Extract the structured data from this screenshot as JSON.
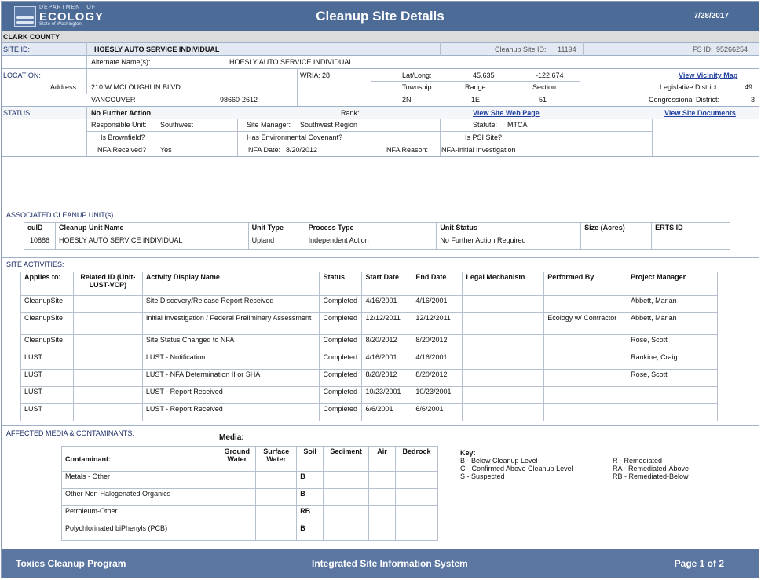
{
  "header": {
    "logo_small": "DEPARTMENT OF",
    "logo_main": "ECOLOGY",
    "logo_sub": "State of Washington",
    "title": "Cleanup Site Details",
    "date": "7/28/2017"
  },
  "county": "CLARK COUNTY",
  "site": {
    "label": "SITE ID:",
    "name": "HOESLY AUTO SERVICE INDIVIDUAL",
    "cleanup_site_id_label": "Cleanup Site ID:",
    "cleanup_site_id": "11194",
    "fs_id_label": "FS ID:",
    "fs_id": "95266254",
    "alt_names_label": "Alternate Name(s):",
    "alt_names": "HOESLY AUTO SERVICE INDIVIDUAL"
  },
  "location": {
    "label": "LOCATION:",
    "wria_label": "WRIA:",
    "wria": "28",
    "latlong_label": "Lat/Long:",
    "lat": "45.635",
    "long": "-122.674",
    "vicinity_link": "View Vicinity Map",
    "address_label": "Address:",
    "street": "210 W MCLOUGHLIN BLVD",
    "city": "VANCOUVER",
    "zip": "98660-2612",
    "township_label": "Township",
    "township": "2N",
    "range_label": "Range",
    "range": "1E",
    "section_label": "Section",
    "section": "51",
    "legislative_label": "Legislative District:",
    "legislative": "49",
    "congressional_label": "Congressional District:",
    "congressional": "3"
  },
  "status": {
    "label": "STATUS:",
    "value": "No Further Action",
    "rank_label": "Rank:",
    "web_link": "View Site Web Page",
    "docs_link": "View Site Documents",
    "unit_label": "Responsible Unit:",
    "unit": "Southwest",
    "manager_label": "Site Manager:",
    "manager": "Southwest Region",
    "statute_label": "Statute:",
    "statute": "MTCA",
    "brownfield_label": "Is Brownfield?",
    "covenant_label": "Has Environmental Covenant?",
    "psi_label": "Is PSI Site?",
    "nfa_received_label": "NFA Received?",
    "nfa_received": "Yes",
    "nfa_date_label": "NFA Date:",
    "nfa_date": "8/20/2012",
    "nfa_reason_label": "NFA Reason:",
    "nfa_reason": "NFA-Initial Investigation"
  },
  "units": {
    "section_label": "ASSOCIATED CLEANUP UNIT(s)",
    "headers": [
      "cuID",
      "Cleanup Unit Name",
      "Unit Type",
      "Process Type",
      "Unit Status",
      "Size (Acres)",
      "ERTS ID"
    ],
    "rows": [
      [
        "10886",
        "HOESLY AUTO SERVICE INDIVIDUAL",
        "Upland",
        "Independent Action",
        "No Further Action Required",
        "",
        ""
      ]
    ]
  },
  "activities": {
    "section_label": "SITE ACTIVITIES:",
    "headers": [
      "Applies to:",
      "Related ID (Unit-LUST-VCP)",
      "Activity Display Name",
      "Status",
      "Start Date",
      "End Date",
      "Legal Mechanism",
      "Performed By",
      "Project Manager"
    ],
    "rows": [
      [
        "CleanupSite",
        "",
        "Site Discovery/Release Report Received",
        "Completed",
        "4/16/2001",
        "4/16/2001",
        "",
        "",
        "Abbett, Marian"
      ],
      [
        "CleanupSite",
        "",
        "Initial Investigation / Federal Preliminary Assessment",
        "Completed",
        "12/12/2011",
        "12/12/2011",
        "",
        "Ecology w/ Contractor",
        "Abbett, Marian"
      ],
      [
        "CleanupSite",
        "",
        "Site Status Changed to NFA",
        "Completed",
        "8/20/2012",
        "8/20/2012",
        "",
        "",
        "Rose, Scott"
      ],
      [
        "LUST",
        "",
        "LUST - Notification",
        "Completed",
        "4/16/2001",
        "4/16/2001",
        "",
        "",
        "Rankine, Craig"
      ],
      [
        "LUST",
        "",
        "LUST - NFA Determination II or SHA",
        "Completed",
        "8/20/2012",
        "8/20/2012",
        "",
        "",
        "Rose, Scott"
      ],
      [
        "LUST",
        "",
        "LUST - Report Received",
        "Completed",
        "10/23/2001",
        "10/23/2001",
        "",
        "",
        ""
      ],
      [
        "LUST",
        "",
        "LUST - Report Received",
        "Completed",
        "6/6/2001",
        "6/6/2001",
        "",
        "",
        ""
      ]
    ]
  },
  "media": {
    "section_label": "AFFECTED MEDIA & CONTAMINANTS:",
    "media_label": "Media:",
    "headers": [
      "Contaminant:",
      "Ground Water",
      "Surface Water",
      "Soil",
      "Sediment",
      "Air",
      "Bedrock"
    ],
    "rows": [
      [
        "Metals - Other",
        "",
        "",
        "B",
        "",
        "",
        ""
      ],
      [
        "Other Non-Halogenated Organics",
        "",
        "",
        "B",
        "",
        "",
        ""
      ],
      [
        "Petroleum-Other",
        "",
        "",
        "RB",
        "",
        "",
        ""
      ],
      [
        "Polychlorinated biPhenyls (PCB)",
        "",
        "",
        "B",
        "",
        "",
        ""
      ]
    ],
    "key_title": "Key:",
    "key_left": [
      "B - Below Cleanup Level",
      "C - Confirmed Above Cleanup Level",
      "S - Suspected"
    ],
    "key_right": [
      "R - Remediated",
      "RA - Remediated-Above",
      "RB - Remediated-Below"
    ]
  },
  "footer": {
    "left": "Toxics Cleanup Program",
    "center": "Integrated Site Information System",
    "right": "Page 1 of 2"
  }
}
